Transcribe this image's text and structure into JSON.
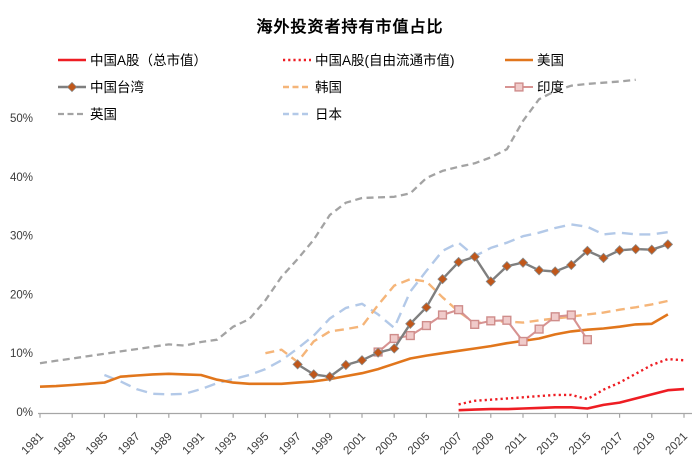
{
  "chart_data": {
    "type": "line",
    "title": "海外投资者持有市值占比",
    "grid": false,
    "legend_position": "top",
    "x_axis": {
      "min": 1981,
      "max": 2021,
      "tick_step": 2,
      "tick_labels": [
        "1981",
        "1983",
        "1985",
        "1987",
        "1989",
        "1991",
        "1993",
        "1995",
        "1997",
        "1999",
        "2001",
        "2003",
        "2005",
        "2007",
        "2009",
        "2011",
        "2013",
        "2015",
        "2017",
        "2019",
        "2021"
      ]
    },
    "y_axis": {
      "min": 0,
      "max": 50,
      "unit": "%",
      "tick_labels": [
        "0%",
        "10%",
        "20%",
        "30%",
        "40%",
        "50%"
      ]
    },
    "series": [
      {
        "key": "cn_total",
        "name": "中国A股（总市值）",
        "color": "#ee1d23",
        "line_style": "solid",
        "dash": null,
        "width": 2.6,
        "marker": null,
        "legend_col": 0,
        "legend_row": 0,
        "points": [
          [
            2007,
            0.3
          ],
          [
            2008,
            0.4
          ],
          [
            2009,
            0.5
          ],
          [
            2010,
            0.5
          ],
          [
            2011,
            0.6
          ],
          [
            2012,
            0.7
          ],
          [
            2013,
            0.8
          ],
          [
            2014,
            0.8
          ],
          [
            2015,
            0.6
          ],
          [
            2016,
            1.2
          ],
          [
            2017,
            1.6
          ],
          [
            2018,
            2.3
          ],
          [
            2019,
            3.0
          ],
          [
            2020,
            3.7
          ],
          [
            2021,
            3.9
          ]
        ]
      },
      {
        "key": "cn_float",
        "name": "中国A股(自由流通市值)",
        "color": "#ee1d23",
        "line_style": "dotted",
        "dash": "2.2 3.1",
        "width": 2.4,
        "marker": null,
        "legend_col": 1,
        "legend_row": 0,
        "points": [
          [
            2007,
            1.3
          ],
          [
            2008,
            1.9
          ],
          [
            2009,
            2.1
          ],
          [
            2010,
            2.3
          ],
          [
            2011,
            2.5
          ],
          [
            2012,
            2.7
          ],
          [
            2013,
            2.9
          ],
          [
            2014,
            2.9
          ],
          [
            2015,
            2.2
          ],
          [
            2016,
            3.8
          ],
          [
            2017,
            5.0
          ],
          [
            2018,
            6.5
          ],
          [
            2019,
            8.0
          ],
          [
            2020,
            9.0
          ],
          [
            2021,
            8.8
          ]
        ]
      },
      {
        "key": "us",
        "name": "美国",
        "color": "#e1761c",
        "line_style": "solid",
        "dash": null,
        "width": 2.6,
        "marker": null,
        "legend_col": 2,
        "legend_row": 0,
        "points": [
          [
            1981,
            4.3
          ],
          [
            1982,
            4.4
          ],
          [
            1983,
            4.6
          ],
          [
            1984,
            4.8
          ],
          [
            1985,
            5.0
          ],
          [
            1986,
            6.0
          ],
          [
            1987,
            6.2
          ],
          [
            1988,
            6.4
          ],
          [
            1989,
            6.5
          ],
          [
            1990,
            6.4
          ],
          [
            1991,
            6.3
          ],
          [
            1992,
            5.5
          ],
          [
            1993,
            5.0
          ],
          [
            1994,
            4.8
          ],
          [
            1995,
            4.8
          ],
          [
            1996,
            4.8
          ],
          [
            1997,
            5.0
          ],
          [
            1998,
            5.2
          ],
          [
            1999,
            5.6
          ],
          [
            2000,
            6.1
          ],
          [
            2001,
            6.6
          ],
          [
            2002,
            7.3
          ],
          [
            2003,
            8.2
          ],
          [
            2004,
            9.1
          ],
          [
            2005,
            9.6
          ],
          [
            2006,
            10.0
          ],
          [
            2007,
            10.4
          ],
          [
            2008,
            10.8
          ],
          [
            2009,
            11.2
          ],
          [
            2010,
            11.7
          ],
          [
            2011,
            12.1
          ],
          [
            2012,
            12.5
          ],
          [
            2013,
            13.2
          ],
          [
            2014,
            13.7
          ],
          [
            2015,
            14.0
          ],
          [
            2016,
            14.2
          ],
          [
            2017,
            14.5
          ],
          [
            2018,
            14.9
          ],
          [
            2019,
            15.0
          ],
          [
            2020,
            16.6
          ]
        ]
      },
      {
        "key": "taiwan",
        "name": "中国台湾",
        "color": "#7f7f7f",
        "line_style": "solid",
        "dash": null,
        "width": 2.4,
        "marker": {
          "shape": "diamond",
          "fill": "#c0571a",
          "stroke": "#8a8a8a",
          "size": 4.6
        },
        "legend_col": 0,
        "legend_row": 1,
        "points": [
          [
            1997,
            8.1
          ],
          [
            1998,
            6.4
          ],
          [
            1999,
            6.0
          ],
          [
            2000,
            8.0
          ],
          [
            2001,
            8.8
          ],
          [
            2002,
            10.1
          ],
          [
            2003,
            10.8
          ],
          [
            2004,
            15.0
          ],
          [
            2005,
            17.8
          ],
          [
            2006,
            22.6
          ],
          [
            2007,
            25.5
          ],
          [
            2008,
            26.4
          ],
          [
            2009,
            22.2
          ],
          [
            2010,
            24.8
          ],
          [
            2011,
            25.4
          ],
          [
            2012,
            24.1
          ],
          [
            2013,
            23.9
          ],
          [
            2014,
            25.0
          ],
          [
            2015,
            27.4
          ],
          [
            2016,
            26.2
          ],
          [
            2017,
            27.5
          ],
          [
            2018,
            27.7
          ],
          [
            2019,
            27.6
          ],
          [
            2020,
            28.5
          ]
        ]
      },
      {
        "key": "korea",
        "name": "韩国",
        "color": "#f5b579",
        "line_style": "dashed",
        "dash": "9 5.5",
        "width": 2.4,
        "marker": null,
        "legend_col": 1,
        "legend_row": 1,
        "points": [
          [
            1995,
            10.0
          ],
          [
            1996,
            10.6
          ],
          [
            1997,
            8.5
          ],
          [
            1998,
            12.0
          ],
          [
            1999,
            13.7
          ],
          [
            2000,
            14.1
          ],
          [
            2001,
            14.6
          ],
          [
            2002,
            18.2
          ],
          [
            2003,
            21.5
          ],
          [
            2004,
            22.6
          ],
          [
            2005,
            22.2
          ],
          [
            2006,
            19.5
          ],
          [
            2007,
            17.1
          ],
          [
            2008,
            15.1
          ],
          [
            2009,
            15.4
          ],
          [
            2010,
            15.4
          ],
          [
            2011,
            15.2
          ],
          [
            2012,
            15.6
          ],
          [
            2013,
            15.9
          ],
          [
            2014,
            16.2
          ],
          [
            2015,
            16.6
          ],
          [
            2016,
            16.9
          ],
          [
            2017,
            17.4
          ],
          [
            2018,
            17.8
          ],
          [
            2019,
            18.3
          ],
          [
            2020,
            18.9
          ]
        ]
      },
      {
        "key": "india",
        "name": "印度",
        "color": "#d79392",
        "line_style": "solid",
        "dash": null,
        "width": 2.1,
        "marker": {
          "shape": "square",
          "fill": "#f0cbca",
          "stroke": "#cf8d8b",
          "size": 3.9
        },
        "legend_col": 2,
        "legend_row": 1,
        "points": [
          [
            2002,
            10.2
          ],
          [
            2003,
            12.5
          ],
          [
            2004,
            13.0
          ],
          [
            2005,
            14.7
          ],
          [
            2006,
            16.5
          ],
          [
            2007,
            17.4
          ],
          [
            2008,
            14.9
          ],
          [
            2009,
            15.5
          ],
          [
            2010,
            15.6
          ],
          [
            2011,
            12.0
          ],
          [
            2012,
            14.1
          ],
          [
            2013,
            16.2
          ],
          [
            2014,
            16.5
          ],
          [
            2015,
            12.3
          ]
        ]
      },
      {
        "key": "uk",
        "name": "英国",
        "color": "#a3a3a3",
        "line_style": "dashed",
        "dash": "7 4.5",
        "width": 2.3,
        "marker": null,
        "legend_col": 0,
        "legend_row": 2,
        "points": [
          [
            1981,
            8.3
          ],
          [
            1982,
            8.7
          ],
          [
            1983,
            9.1
          ],
          [
            1984,
            9.5
          ],
          [
            1985,
            9.9
          ],
          [
            1986,
            10.3
          ],
          [
            1987,
            10.7
          ],
          [
            1988,
            11.1
          ],
          [
            1989,
            11.5
          ],
          [
            1990,
            11.3
          ],
          [
            1991,
            11.9
          ],
          [
            1992,
            12.3
          ],
          [
            1993,
            14.5
          ],
          [
            1994,
            15.8
          ],
          [
            1995,
            19.0
          ],
          [
            1996,
            23.0
          ],
          [
            1997,
            26.0
          ],
          [
            1998,
            29.3
          ],
          [
            1999,
            33.5
          ],
          [
            2000,
            35.6
          ],
          [
            2001,
            36.4
          ],
          [
            2002,
            36.5
          ],
          [
            2003,
            36.6
          ],
          [
            2004,
            37.2
          ],
          [
            2005,
            39.8
          ],
          [
            2006,
            41.0
          ],
          [
            2007,
            41.7
          ],
          [
            2008,
            42.3
          ],
          [
            2009,
            43.3
          ],
          [
            2010,
            44.7
          ],
          [
            2011,
            49.5
          ],
          [
            2012,
            53.2
          ],
          [
            2013,
            54.6
          ],
          [
            2014,
            55.5
          ],
          [
            2015,
            55.8
          ],
          [
            2016,
            56.0
          ],
          [
            2017,
            56.2
          ],
          [
            2018,
            56.5
          ]
        ]
      },
      {
        "key": "japan",
        "name": "日本",
        "color": "#b3c9e8",
        "line_style": "dashed",
        "dash": "11 6.5",
        "width": 2.4,
        "marker": null,
        "legend_col": 1,
        "legend_row": 2,
        "points": [
          [
            1985,
            6.3
          ],
          [
            1986,
            5.2
          ],
          [
            1987,
            3.9
          ],
          [
            1988,
            3.1
          ],
          [
            1989,
            3.0
          ],
          [
            1990,
            3.1
          ],
          [
            1991,
            3.9
          ],
          [
            1992,
            4.9
          ],
          [
            1993,
            5.6
          ],
          [
            1994,
            6.3
          ],
          [
            1995,
            7.3
          ],
          [
            1996,
            8.8
          ],
          [
            1997,
            10.8
          ],
          [
            1998,
            13.0
          ],
          [
            1999,
            15.9
          ],
          [
            2000,
            17.7
          ],
          [
            2001,
            18.4
          ],
          [
            2002,
            16.6
          ],
          [
            2003,
            14.3
          ],
          [
            2004,
            20.5
          ],
          [
            2005,
            24.0
          ],
          [
            2006,
            27.4
          ],
          [
            2007,
            28.8
          ],
          [
            2008,
            26.5
          ],
          [
            2009,
            27.9
          ],
          [
            2010,
            28.8
          ],
          [
            2011,
            29.9
          ],
          [
            2012,
            30.5
          ],
          [
            2013,
            31.3
          ],
          [
            2014,
            31.9
          ],
          [
            2015,
            31.5
          ],
          [
            2016,
            30.2
          ],
          [
            2017,
            30.5
          ],
          [
            2018,
            30.2
          ],
          [
            2019,
            30.2
          ],
          [
            2020,
            30.6
          ]
        ]
      }
    ]
  }
}
